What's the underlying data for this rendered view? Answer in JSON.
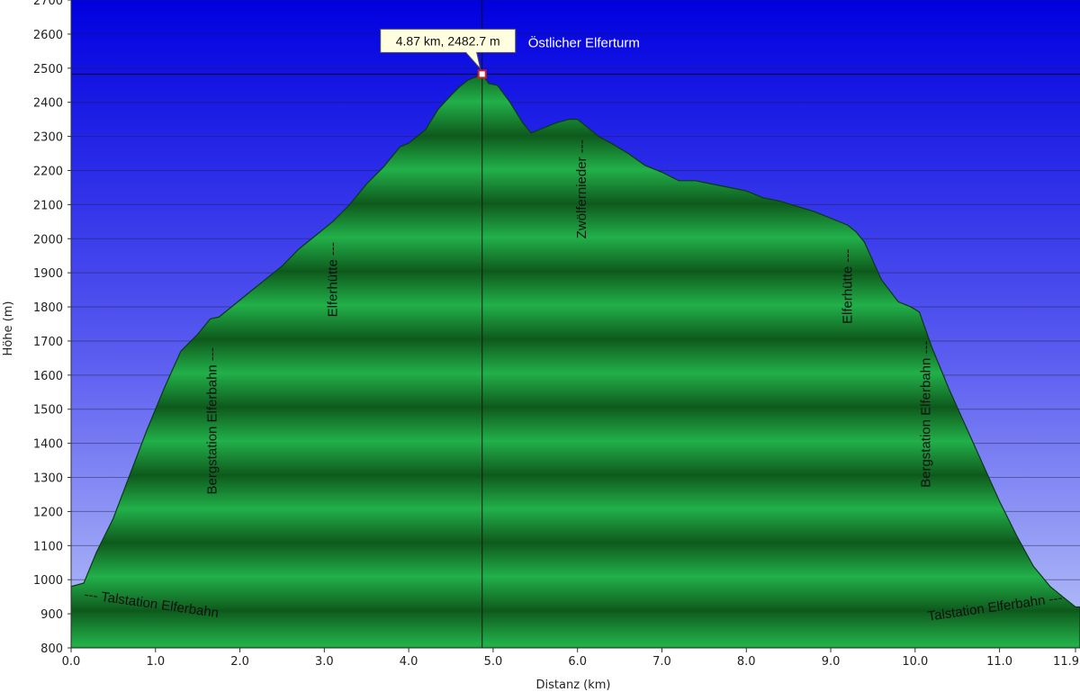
{
  "chart_data": {
    "type": "area",
    "title": "",
    "xlabel": "Distanz (km)",
    "ylabel": "Höhe (m)",
    "xlim": [
      0.0,
      11.9
    ],
    "ylim": [
      800,
      2700
    ],
    "grid": true,
    "x_ticks": [
      "0.0",
      "1.0",
      "2.0",
      "3.0",
      "4.0",
      "5.0",
      "6.0",
      "7.0",
      "8.0",
      "9.0",
      "10.0",
      "11.0",
      "11.9"
    ],
    "y_ticks": [
      "800",
      "900",
      "1000",
      "1100",
      "1200",
      "1300",
      "1400",
      "1500",
      "1600",
      "1700",
      "1800",
      "1900",
      "2000",
      "2100",
      "2200",
      "2300",
      "2400",
      "2500",
      "2600",
      "2700"
    ],
    "series": [
      {
        "x": [
          0.0,
          0.15,
          0.3,
          0.5,
          0.7,
          0.9,
          1.1,
          1.3,
          1.5,
          1.65,
          1.75,
          1.9,
          2.1,
          2.3,
          2.5,
          2.7,
          2.9,
          3.1,
          3.3,
          3.5,
          3.7,
          3.8,
          3.9,
          4.0,
          4.2,
          4.35,
          4.5,
          4.6,
          4.7,
          4.8,
          4.87,
          4.95,
          5.05,
          5.2,
          5.35,
          5.45,
          5.6,
          5.75,
          5.9,
          6.0,
          6.1,
          6.25,
          6.4,
          6.6,
          6.8,
          7.0,
          7.2,
          7.4,
          7.6,
          7.8,
          8.0,
          8.2,
          8.4,
          8.6,
          8.8,
          9.0,
          9.2,
          9.3,
          9.4,
          9.6,
          9.8,
          9.95,
          10.05,
          10.2,
          10.4,
          10.6,
          10.8,
          11.0,
          11.2,
          11.4,
          11.6,
          11.75,
          11.9
        ],
        "y": [
          980,
          990,
          1080,
          1180,
          1310,
          1440,
          1560,
          1670,
          1720,
          1765,
          1770,
          1800,
          1840,
          1880,
          1920,
          1970,
          2010,
          2050,
          2100,
          2160,
          2210,
          2240,
          2270,
          2280,
          2320,
          2380,
          2420,
          2445,
          2465,
          2475,
          2482.7,
          2455,
          2450,
          2400,
          2340,
          2310,
          2325,
          2340,
          2350,
          2350,
          2330,
          2300,
          2280,
          2250,
          2215,
          2195,
          2170,
          2170,
          2160,
          2150,
          2140,
          2120,
          2110,
          2095,
          2080,
          2060,
          2040,
          2020,
          1990,
          1880,
          1815,
          1800,
          1785,
          1680,
          1560,
          1450,
          1340,
          1230,
          1130,
          1040,
          980,
          950,
          920
        ]
      }
    ],
    "annotations": [
      {
        "text": "--- Talstation Elferbahn",
        "x": 0.15,
        "y": 945
      },
      {
        "text": "Bergstation Elferbahn ---",
        "x": 1.72,
        "y": 1250
      },
      {
        "text": "Elferhütte ---",
        "x": 3.15,
        "y": 1770
      },
      {
        "text": "Zwölfernieder ---",
        "x": 6.1,
        "y": 2000
      },
      {
        "text": "Elferhütte ---",
        "x": 9.25,
        "y": 1750
      },
      {
        "text": "Bergstation Elferbahn ---",
        "x": 10.18,
        "y": 1270
      },
      {
        "text": "Talstation Elferbahn ---",
        "x": 11.75,
        "y": 935
      }
    ],
    "marker": {
      "x": 4.87,
      "y": 2482.7,
      "tooltip": "4.87 km, 2482.7 m",
      "label": "Östlicher Elferturm"
    }
  }
}
